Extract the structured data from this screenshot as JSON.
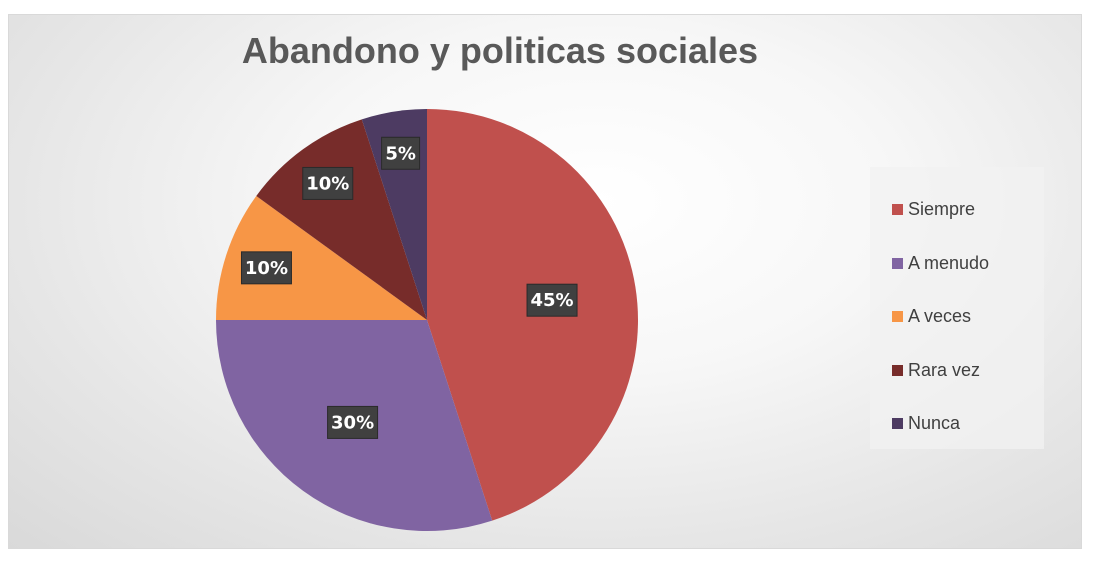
{
  "chart_data": {
    "type": "pie",
    "title": "Abandono y politicas sociales",
    "categories": [
      "Siempre",
      "A menudo",
      "A veces",
      "Rara vez",
      "Nunca"
    ],
    "values": [
      45,
      30,
      10,
      10,
      5
    ],
    "labels": [
      "45%",
      "30%",
      "10%",
      "10%",
      "5%"
    ],
    "colors": [
      "#c0504d",
      "#8064a2",
      "#f79646",
      "#772c2a",
      "#4d3b62"
    ],
    "legend_position": "right",
    "start_angle": "top, clockwise"
  }
}
